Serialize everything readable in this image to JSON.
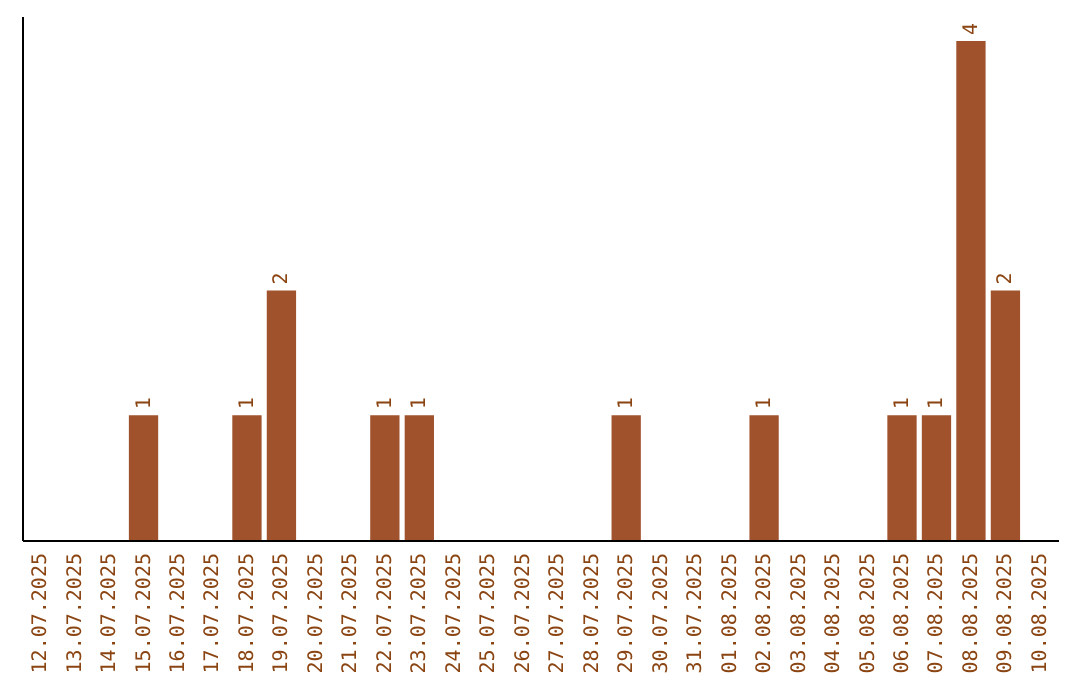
{
  "chart_data": {
    "type": "bar",
    "categories": [
      "12.07.2025",
      "13.07.2025",
      "14.07.2025",
      "15.07.2025",
      "16.07.2025",
      "17.07.2025",
      "18.07.2025",
      "19.07.2025",
      "20.07.2025",
      "21.07.2025",
      "22.07.2025",
      "23.07.2025",
      "24.07.2025",
      "25.07.2025",
      "26.07.2025",
      "27.07.2025",
      "28.07.2025",
      "29.07.2025",
      "30.07.2025",
      "31.07.2025",
      "01.08.2025",
      "02.08.2025",
      "03.08.2025",
      "04.08.2025",
      "05.08.2025",
      "06.08.2025",
      "07.08.2025",
      "08.08.2025",
      "09.08.2025",
      "10.08.2025"
    ],
    "values": [
      0,
      0,
      0,
      1,
      0,
      0,
      1,
      2,
      0,
      0,
      1,
      1,
      0,
      0,
      0,
      0,
      0,
      1,
      0,
      0,
      0,
      1,
      0,
      0,
      0,
      1,
      1,
      4,
      2,
      0
    ],
    "value_labels": [
      null,
      null,
      null,
      "1",
      null,
      null,
      "1",
      "2",
      null,
      null,
      "1",
      "1",
      null,
      null,
      null,
      null,
      null,
      "1",
      null,
      null,
      null,
      "1",
      null,
      null,
      null,
      "1",
      "1",
      "4",
      "2",
      null
    ],
    "color": "#a0522d",
    "ylim": [
      0,
      4.2
    ],
    "grid": false
  }
}
